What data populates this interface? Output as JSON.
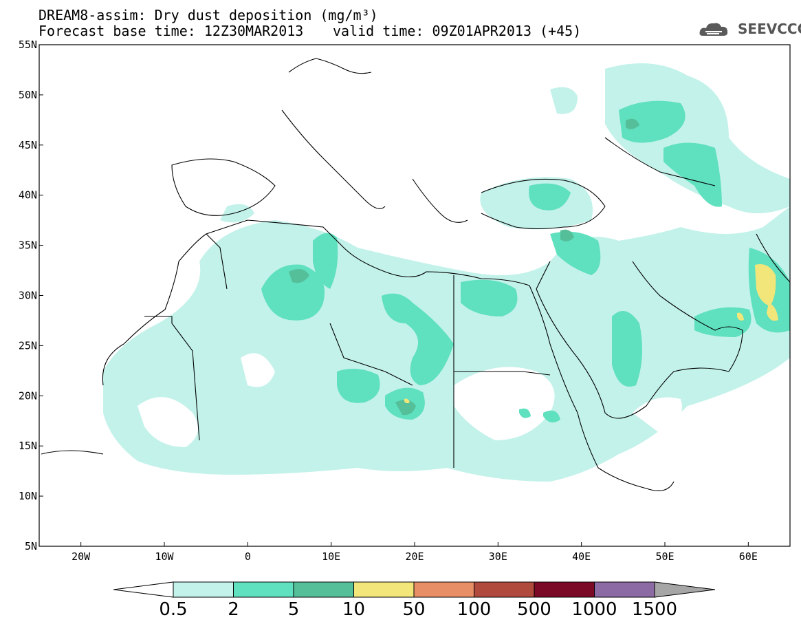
{
  "title": {
    "line1": "DREAM8-assim: Dry dust deposition (mg/m³)",
    "line2": "Forecast base time: 12Z30MAR2013",
    "valid_time": "valid time: 09Z01APR2013 (+45)"
  },
  "logo": {
    "text": "SEEVCCC",
    "icon": "cloud-icon"
  },
  "axes": {
    "lat_labels": [
      "55N",
      "50N",
      "45N",
      "40N",
      "35N",
      "30N",
      "25N",
      "20N",
      "15N",
      "10N",
      "5N"
    ],
    "lon_labels": [
      "20W",
      "10W",
      "0",
      "10E",
      "20E",
      "30E",
      "40E",
      "50E",
      "60E"
    ],
    "lat_range": [
      5,
      55
    ],
    "lon_range": [
      -25,
      65
    ]
  },
  "colorbar": {
    "labels": [
      "0.5",
      "2",
      "5",
      "10",
      "50",
      "100",
      "500",
      "1000",
      "1500"
    ],
    "colors": [
      "#c2f2ea",
      "#5fe0bf",
      "#55bf9a",
      "#f2e67a",
      "#e88e66",
      "#b04a3d",
      "#7a0a25",
      "#8c6aa3",
      "#a6a6a6"
    ]
  }
}
